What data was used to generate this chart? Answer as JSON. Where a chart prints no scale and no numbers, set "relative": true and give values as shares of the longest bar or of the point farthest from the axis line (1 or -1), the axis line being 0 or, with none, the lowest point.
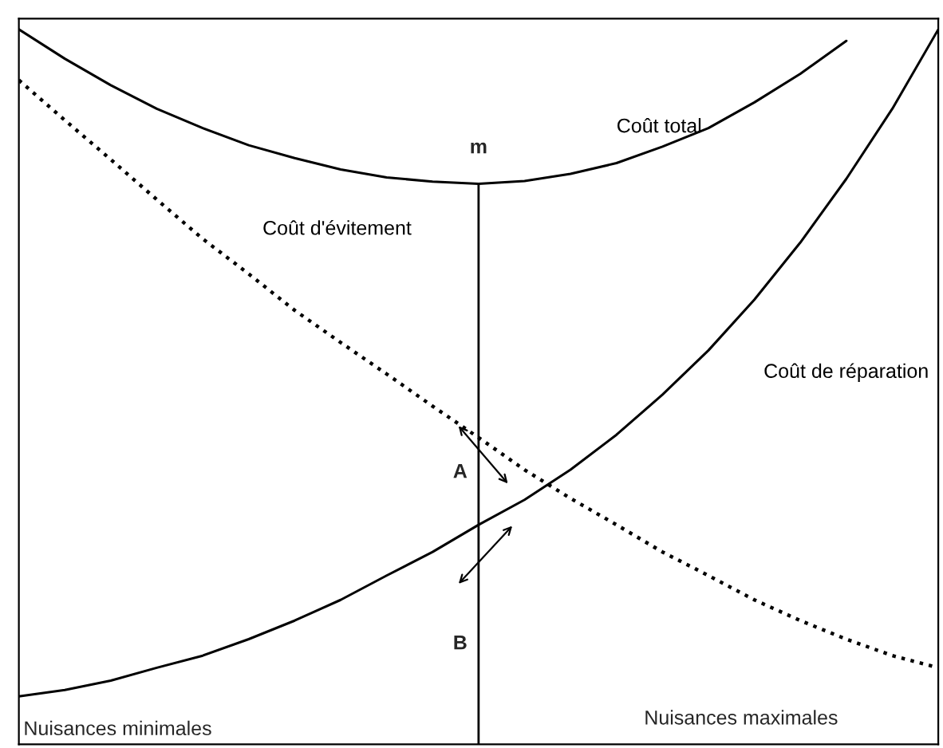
{
  "chart_data": {
    "type": "line",
    "relative": true,
    "categories": [
      null,
      null,
      null,
      null,
      null,
      null,
      null,
      null,
      null,
      null,
      null,
      null,
      null,
      null,
      null,
      null,
      null,
      null,
      null,
      null,
      null
    ],
    "series": [
      {
        "name": "Coût total",
        "color": "#000000",
        "line_style": "solid",
        "values": [
          1.0,
          0.959,
          0.922,
          0.889,
          0.862,
          0.838,
          0.82,
          0.804,
          0.793,
          0.787,
          0.784,
          0.788,
          0.798,
          0.813,
          0.836,
          0.862,
          0.898,
          0.938,
          0.984,
          null,
          null
        ]
      },
      {
        "name": "Coût d'évitement",
        "color": "#000000",
        "line_style": "dotted",
        "values": [
          0.929,
          0.873,
          0.818,
          0.762,
          0.707,
          0.658,
          0.607,
          0.562,
          0.518,
          0.473,
          0.429,
          0.384,
          0.344,
          0.307,
          0.269,
          0.236,
          0.202,
          0.173,
          0.147,
          0.124,
          0.107
        ]
      },
      {
        "name": "Coût de réparation",
        "color": "#000000",
        "line_style": "solid",
        "values": [
          0.067,
          0.076,
          0.089,
          0.107,
          0.124,
          0.147,
          0.173,
          0.202,
          0.236,
          0.269,
          0.307,
          0.342,
          0.384,
          0.433,
          0.489,
          0.551,
          0.622,
          0.702,
          0.791,
          0.889,
          1.0
        ]
      }
    ],
    "annotations": [
      "m",
      "A",
      "B",
      "Nuisances minimales",
      "Nuisances maximales"
    ]
  }
}
